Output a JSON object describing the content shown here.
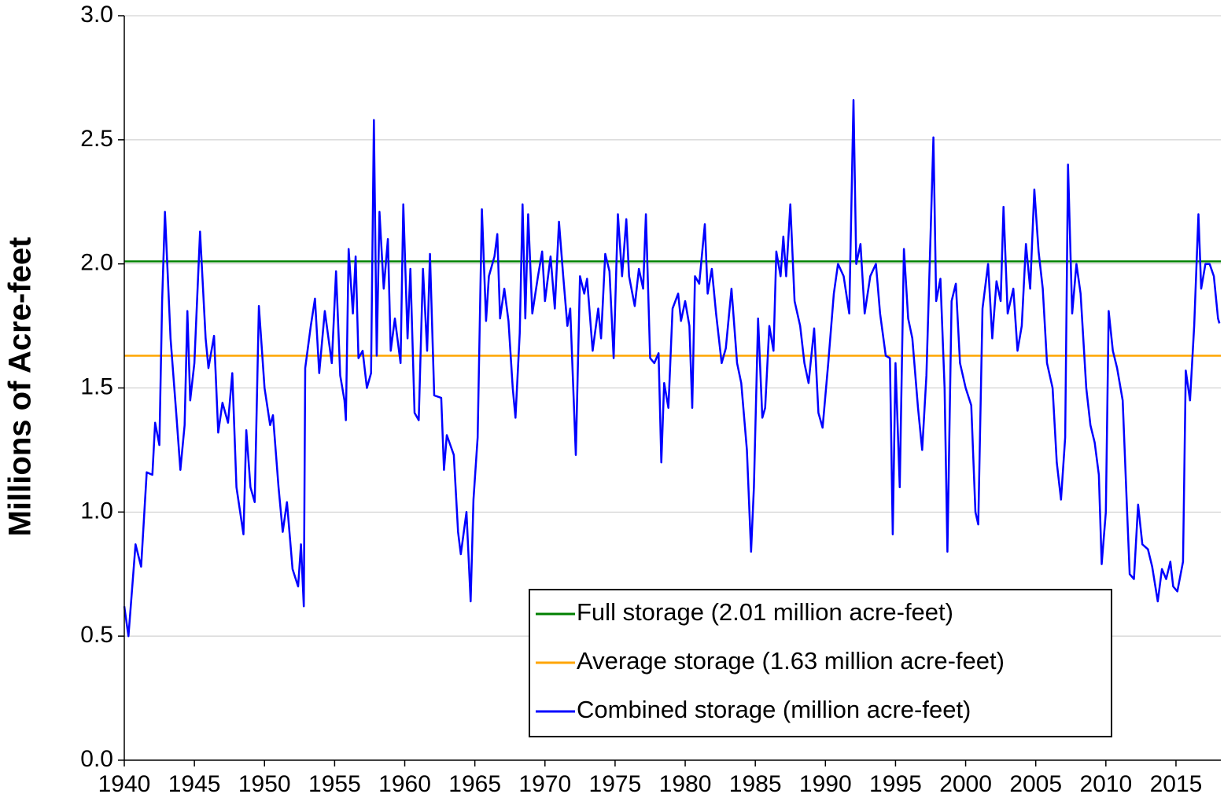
{
  "chart_data": {
    "type": "line",
    "y_label": "Millions of Acre-feet",
    "xlim": [
      1940,
      2018.2
    ],
    "xticks": [
      1940,
      1945,
      1950,
      1955,
      1960,
      1965,
      1970,
      1975,
      1980,
      1985,
      1990,
      1995,
      2000,
      2005,
      2010,
      2015
    ],
    "ylim": [
      0,
      3
    ],
    "yticks": [
      {
        "value": 0,
        "label": "0.0"
      },
      0.5,
      {
        "value": 1,
        "label": "1.0"
      },
      1.5,
      {
        "value": 2,
        "label": "2.0"
      },
      2.5,
      {
        "value": 3,
        "label": "3.0"
      }
    ],
    "grid": true,
    "legend": "lower right",
    "series": [
      {
        "name": "Full storage (2.01 million acre-feet)",
        "color": "#008000",
        "x": [
          1940,
          2018.2
        ],
        "values": [
          2.01,
          2.01
        ]
      },
      {
        "name": "Average storage (1.63 million acre-feet)",
        "color": "#ffa500",
        "x": [
          1940,
          2018.2
        ],
        "values": [
          1.63,
          1.63
        ]
      },
      {
        "name": "Combined storage (million acre-feet)",
        "color": "#0000ff",
        "x": [
          1940.0,
          1940.3,
          1940.8,
          1941.2,
          1941.6,
          1942.0,
          1942.2,
          1942.5,
          1942.7,
          1942.9,
          1943.3,
          1943.7,
          1944.0,
          1944.3,
          1944.5,
          1944.7,
          1945.0,
          1945.4,
          1945.8,
          1946.0,
          1946.4,
          1946.7,
          1947.0,
          1947.4,
          1947.7,
          1948.0,
          1948.5,
          1948.7,
          1949.0,
          1949.3,
          1949.6,
          1950.0,
          1950.4,
          1950.6,
          1951.0,
          1951.3,
          1951.6,
          1952.0,
          1952.4,
          1952.6,
          1952.8,
          1952.9,
          1953.3,
          1953.6,
          1953.9,
          1954.3,
          1954.8,
          1955.1,
          1955.4,
          1955.7,
          1955.8,
          1956.0,
          1956.3,
          1956.5,
          1956.7,
          1957.0,
          1957.3,
          1957.6,
          1957.8,
          1958.0,
          1958.2,
          1958.5,
          1958.8,
          1959.0,
          1959.3,
          1959.7,
          1959.9,
          1960.2,
          1960.4,
          1960.7,
          1961.0,
          1961.3,
          1961.6,
          1961.8,
          1962.1,
          1962.6,
          1962.8,
          1963.0,
          1963.5,
          1963.8,
          1964.0,
          1964.4,
          1964.7,
          1964.9,
          1965.2,
          1965.5,
          1965.8,
          1966.0,
          1966.4,
          1966.6,
          1966.8,
          1967.1,
          1967.4,
          1967.7,
          1967.9,
          1968.2,
          1968.4,
          1968.6,
          1968.8,
          1969.1,
          1969.5,
          1969.8,
          1970.0,
          1970.4,
          1970.7,
          1971.0,
          1971.3,
          1971.6,
          1971.8,
          1972.2,
          1972.5,
          1972.8,
          1973.0,
          1973.4,
          1973.8,
          1974.0,
          1974.3,
          1974.6,
          1974.9,
          1975.2,
          1975.5,
          1975.8,
          1976.0,
          1976.4,
          1976.7,
          1977.0,
          1977.2,
          1977.5,
          1977.8,
          1978.1,
          1978.3,
          1978.5,
          1978.8,
          1979.1,
          1979.5,
          1979.7,
          1980.0,
          1980.3,
          1980.5,
          1980.7,
          1981.0,
          1981.4,
          1981.6,
          1981.9,
          1982.2,
          1982.6,
          1982.9,
          1983.3,
          1983.7,
          1984.0,
          1984.4,
          1984.7,
          1984.9,
          1985.2,
          1985.5,
          1985.7,
          1986.0,
          1986.3,
          1986.5,
          1986.8,
          1987.0,
          1987.2,
          1987.5,
          1987.8,
          1988.2,
          1988.5,
          1988.8,
          1989.2,
          1989.5,
          1989.8,
          1990.2,
          1990.6,
          1990.9,
          1991.3,
          1991.7,
          1992.0,
          1992.2,
          1992.5,
          1992.8,
          1993.2,
          1993.6,
          1993.9,
          1994.3,
          1994.6,
          1994.8,
          1995.0,
          1995.3,
          1995.6,
          1995.9,
          1996.2,
          1996.6,
          1996.9,
          1997.2,
          1997.5,
          1997.7,
          1997.9,
          1998.2,
          1998.5,
          1998.7,
          1999.0,
          1999.3,
          1999.6,
          2000.0,
          2000.4,
          2000.7,
          2000.9,
          2001.2,
          2001.6,
          2001.9,
          2002.2,
          2002.5,
          2002.7,
          2003.0,
          2003.4,
          2003.7,
          2004.0,
          2004.3,
          2004.6,
          2004.9,
          2005.2,
          2005.5,
          2005.8,
          2006.2,
          2006.5,
          2006.8,
          2007.1,
          2007.3,
          2007.6,
          2007.9,
          2008.2,
          2008.6,
          2008.9,
          2009.2,
          2009.5,
          2009.7,
          2010.0,
          2010.2,
          2010.5,
          2010.8,
          2011.2,
          2011.5,
          2011.7,
          2012.0,
          2012.3,
          2012.6,
          2013.0,
          2013.3,
          2013.7,
          2014.0,
          2014.3,
          2014.6,
          2014.8,
          2015.1,
          2015.5,
          2015.7,
          2016.0,
          2016.3,
          2016.6,
          2016.8,
          2017.1,
          2017.4,
          2017.7,
          2018.0,
          2018.1
        ],
        "values": [
          0.62,
          0.5,
          0.87,
          0.78,
          1.16,
          1.15,
          1.36,
          1.27,
          1.85,
          2.21,
          1.7,
          1.4,
          1.17,
          1.35,
          1.81,
          1.45,
          1.6,
          2.13,
          1.7,
          1.58,
          1.71,
          1.32,
          1.44,
          1.36,
          1.56,
          1.1,
          0.91,
          1.33,
          1.1,
          1.04,
          1.83,
          1.5,
          1.35,
          1.39,
          1.1,
          0.92,
          1.04,
          0.77,
          0.7,
          0.87,
          0.62,
          1.58,
          1.75,
          1.86,
          1.56,
          1.81,
          1.6,
          1.97,
          1.55,
          1.45,
          1.37,
          2.06,
          1.8,
          2.03,
          1.62,
          1.65,
          1.5,
          1.56,
          2.58,
          1.63,
          2.21,
          1.9,
          2.1,
          1.65,
          1.78,
          1.6,
          2.24,
          1.7,
          1.98,
          1.4,
          1.37,
          1.98,
          1.65,
          2.04,
          1.47,
          1.46,
          1.17,
          1.31,
          1.23,
          0.92,
          0.83,
          1.0,
          0.64,
          1.05,
          1.3,
          2.22,
          1.77,
          1.95,
          2.03,
          2.12,
          1.78,
          1.9,
          1.77,
          1.5,
          1.38,
          1.72,
          2.24,
          1.78,
          2.2,
          1.8,
          1.95,
          2.05,
          1.85,
          2.03,
          1.82,
          2.17,
          1.95,
          1.75,
          1.82,
          1.23,
          1.95,
          1.88,
          1.94,
          1.65,
          1.82,
          1.7,
          2.04,
          1.97,
          1.62,
          2.2,
          1.95,
          2.18,
          1.95,
          1.83,
          1.98,
          1.9,
          2.2,
          1.62,
          1.6,
          1.64,
          1.2,
          1.52,
          1.42,
          1.82,
          1.88,
          1.77,
          1.85,
          1.75,
          1.42,
          1.95,
          1.92,
          2.16,
          1.88,
          1.98,
          1.8,
          1.6,
          1.66,
          1.9,
          1.6,
          1.52,
          1.25,
          0.84,
          1.1,
          1.78,
          1.38,
          1.42,
          1.75,
          1.65,
          2.05,
          1.95,
          2.11,
          1.95,
          2.24,
          1.85,
          1.75,
          1.6,
          1.52,
          1.74,
          1.4,
          1.34,
          1.6,
          1.88,
          2.0,
          1.95,
          1.8,
          2.66,
          2.0,
          2.08,
          1.8,
          1.95,
          2.0,
          1.8,
          1.63,
          1.62,
          0.91,
          1.6,
          1.1,
          2.06,
          1.78,
          1.7,
          1.42,
          1.25,
          1.55,
          2.12,
          2.51,
          1.85,
          1.94,
          1.5,
          0.84,
          1.85,
          1.92,
          1.6,
          1.5,
          1.43,
          1.0,
          0.95,
          1.82,
          2.0,
          1.7,
          1.93,
          1.85,
          2.23,
          1.8,
          1.9,
          1.65,
          1.75,
          2.08,
          1.9,
          2.3,
          2.05,
          1.9,
          1.6,
          1.5,
          1.2,
          1.05,
          1.3,
          2.4,
          1.8,
          2.0,
          1.88,
          1.5,
          1.35,
          1.28,
          1.15,
          0.79,
          1.0,
          1.81,
          1.65,
          1.58,
          1.45,
          1.02,
          0.75,
          0.73,
          1.03,
          0.87,
          0.85,
          0.78,
          0.64,
          0.77,
          0.73,
          0.8,
          0.7,
          0.68,
          0.8,
          1.57,
          1.45,
          1.75,
          2.2,
          1.9,
          2.0,
          2.0,
          1.95,
          1.78,
          1.76
        ]
      }
    ]
  }
}
